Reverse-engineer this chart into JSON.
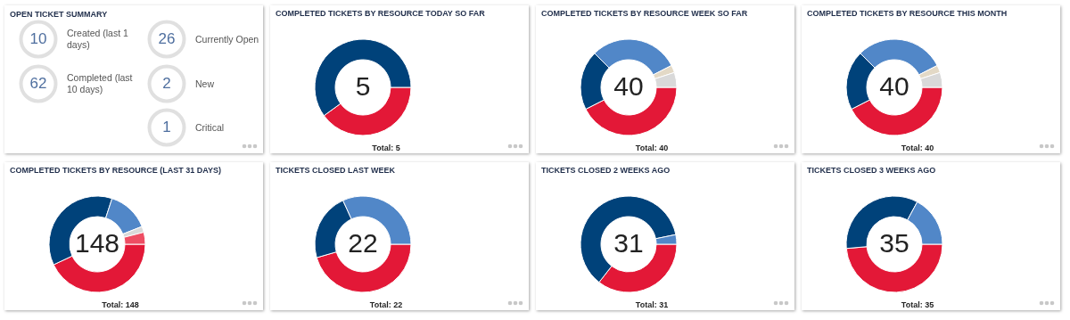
{
  "chart_data": [
    {
      "type": "other",
      "title": "OPEN TICKET SUMMARY",
      "annotations": [
        "10",
        "Created (last 1 days)",
        "62",
        "Completed (last 10 days)",
        "26",
        "Currently Open",
        "2",
        "New",
        "1",
        "Critical"
      ]
    },
    {
      "type": "donut",
      "title": "COMPLETED TICKETS BY RESOURCE TODAY SO FAR",
      "categories": [
        null,
        null
      ],
      "values": [
        40,
        60
      ],
      "colors": [
        "#e31837",
        "#00427a"
      ],
      "annotations": [
        "5",
        "Total:  5"
      ]
    },
    {
      "type": "donut",
      "title": "COMPLETED TICKETS BY RESOURCE WEEK SO FAR",
      "categories": [
        null,
        null,
        null,
        null,
        null
      ],
      "values": [
        42.5,
        20,
        30,
        2.5,
        5
      ],
      "colors": [
        "#e31837",
        "#00427a",
        "#5187c8",
        "#e3d9c6",
        "#d9d9d9"
      ],
      "annotations": [
        "40",
        "Total:  40"
      ]
    },
    {
      "type": "donut",
      "title": "COMPLETED TICKETS BY RESOURCE THIS MONTH",
      "categories": [
        null,
        null,
        null,
        null,
        null
      ],
      "values": [
        42.5,
        20,
        30,
        2.5,
        5
      ],
      "colors": [
        "#e31837",
        "#00427a",
        "#5187c8",
        "#e3d9c6",
        "#d9d9d9"
      ],
      "annotations": [
        "40",
        "Total:  40"
      ]
    },
    {
      "type": "donut",
      "title": "COMPLETED TICKETS BY RESOURCE (LAST 31 DAYS)",
      "categories": [
        null,
        null,
        null,
        null,
        null
      ],
      "values": [
        43,
        37,
        14,
        2,
        4
      ],
      "colors": [
        "#e31837",
        "#00427a",
        "#5187c8",
        "#d9d9d9",
        "#ee4d63"
      ],
      "annotations": [
        "148",
        "Total:  148"
      ]
    },
    {
      "type": "donut",
      "title": "TICKETS CLOSED LAST WEEK",
      "categories": [
        null,
        null,
        null
      ],
      "values": [
        45.5,
        22.7,
        31.8
      ],
      "colors": [
        "#e31837",
        "#00427a",
        "#5187c8"
      ],
      "annotations": [
        "22",
        "Total:  22"
      ]
    },
    {
      "type": "donut",
      "title": "TICKETS CLOSED 2 WEEKS AGO",
      "categories": [
        null,
        null,
        null
      ],
      "values": [
        35.5,
        61.3,
        3.2
      ],
      "colors": [
        "#e31837",
        "#00427a",
        "#5187c8"
      ],
      "annotations": [
        "31",
        "Total:  31"
      ]
    },
    {
      "type": "donut",
      "title": "TICKETS CLOSED 3 WEEKS AGO",
      "categories": [
        null,
        null,
        null
      ],
      "values": [
        48.6,
        34.3,
        17.1
      ],
      "colors": [
        "#e31837",
        "#00427a",
        "#5187c8"
      ],
      "annotations": [
        "35",
        "Total:  35"
      ]
    }
  ]
}
